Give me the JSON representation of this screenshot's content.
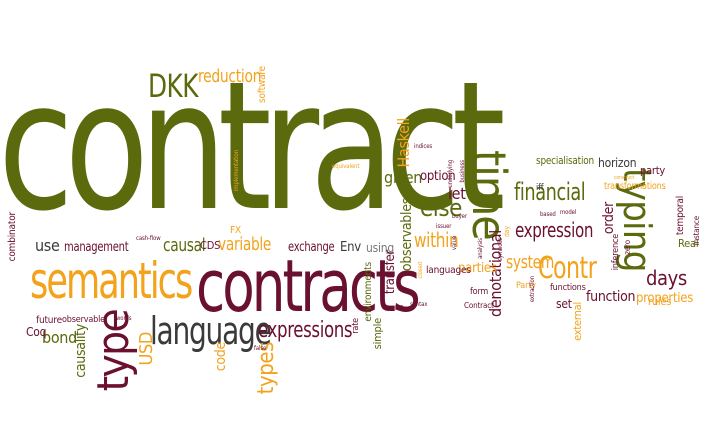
{
  "words": [
    {
      "id": "contract",
      "text": "contract",
      "color": "#5a6a0c"
    },
    {
      "id": "contracts",
      "text": "contracts",
      "color": "#6a1030"
    },
    {
      "id": "semantics",
      "text": "semantics",
      "color": "#f3a21c"
    },
    {
      "id": "type",
      "text": "type",
      "color": "#6a1030"
    },
    {
      "id": "language",
      "text": "language",
      "color": "#3a3a3a"
    },
    {
      "id": "time",
      "text": "time",
      "color": "#5a6a0c"
    },
    {
      "id": "typing",
      "text": "typing",
      "color": "#5a6a0c"
    },
    {
      "id": "Contr",
      "text": "Contr",
      "color": "#f3a21c"
    },
    {
      "id": "financial",
      "text": "financial",
      "color": "#5a6a0c"
    },
    {
      "id": "expression",
      "text": "expression",
      "color": "#6a1030"
    },
    {
      "id": "expressions",
      "text": "expressions",
      "color": "#6a1030"
    },
    {
      "id": "days",
      "text": "days",
      "color": "#6a1030"
    },
    {
      "id": "DKK",
      "text": "DKK",
      "color": "#5a6a0c"
    },
    {
      "id": "reduction",
      "text": "reduction",
      "color": "#f3a21c"
    },
    {
      "id": "use",
      "text": "use",
      "color": "#3a3a3a"
    },
    {
      "id": "management",
      "text": "management",
      "color": "#6a1030"
    },
    {
      "id": "causal",
      "text": "causal",
      "color": "#5a6a0c"
    },
    {
      "id": "variable",
      "text": "variable",
      "color": "#f3a21c"
    },
    {
      "id": "CDS",
      "text": "CDS",
      "color": "#6a1030"
    },
    {
      "id": "exchange",
      "text": "exchange",
      "color": "#6a1030"
    },
    {
      "id": "Env",
      "text": "Env",
      "color": "#3a3a3a"
    },
    {
      "id": "using",
      "text": "using",
      "color": "#7a7a7a"
    },
    {
      "id": "observables",
      "text": "observables",
      "color": "#5a6a0c"
    },
    {
      "id": "else",
      "text": "else",
      "color": "#5a6a0c"
    },
    {
      "id": "within",
      "text": "within",
      "color": "#f3a21c"
    },
    {
      "id": "let",
      "text": "let",
      "color": "#6a1030"
    },
    {
      "id": "given",
      "text": "given",
      "color": "#5a6a0c"
    },
    {
      "id": "option",
      "text": "option",
      "color": "#6a1030"
    },
    {
      "id": "Haskell",
      "text": "Haskell",
      "color": "#f3a21c"
    },
    {
      "id": "system",
      "text": "system",
      "color": "#f3a21c"
    },
    {
      "id": "denotational",
      "text": "denotational",
      "color": "#6a1030"
    },
    {
      "id": "parties",
      "text": "parties",
      "color": "#f3a21c"
    },
    {
      "id": "function",
      "text": "function",
      "color": "#6a1030"
    },
    {
      "id": "properties",
      "text": "properties",
      "color": "#f3a21c"
    },
    {
      "id": "set",
      "text": "set",
      "color": "#6a1030"
    },
    {
      "id": "specialisation",
      "text": "specialisation",
      "color": "#5a6a0c"
    },
    {
      "id": "horizon",
      "text": "horizon",
      "color": "#3a3a3a"
    },
    {
      "id": "party",
      "text": "party",
      "color": "#6a1030"
    },
    {
      "id": "transformations",
      "text": "transformations",
      "color": "#f3a21c"
    },
    {
      "id": "order",
      "text": "order",
      "color": "#6a1030"
    },
    {
      "id": "Real",
      "text": "Real",
      "color": "#5a6a0c"
    },
    {
      "id": "rules",
      "text": "rules",
      "color": "#f3a21c"
    },
    {
      "id": "bond",
      "text": "bond",
      "color": "#5a6a0c"
    },
    {
      "id": "Coq",
      "text": "Coq",
      "color": "#6a1030"
    },
    {
      "id": "causality",
      "text": "causality",
      "color": "#5a6a0c"
    },
    {
      "id": "USD",
      "text": "USD",
      "color": "#f3a21c"
    },
    {
      "id": "code",
      "text": "code",
      "color": "#f3a21c"
    },
    {
      "id": "types",
      "text": "types",
      "color": "#f3a21c"
    },
    {
      "id": "software",
      "text": "software",
      "color": "#f3a21c"
    },
    {
      "id": "combinator",
      "text": "combinator",
      "color": "#6a1030"
    },
    {
      "id": "future",
      "text": "future",
      "color": "#6a1030"
    },
    {
      "id": "observable",
      "text": "observable",
      "color": "#6a1030"
    },
    {
      "id": "FX",
      "text": "FX",
      "color": "#f3a21c"
    },
    {
      "id": "transfer",
      "text": "transfer",
      "color": "#6a1030"
    },
    {
      "id": "environments",
      "text": "environments",
      "color": "#5a6a0c"
    },
    {
      "id": "simple",
      "text": "simple",
      "color": "#5a6a0c"
    },
    {
      "id": "rate",
      "text": "rate",
      "color": "#6a1030"
    },
    {
      "id": "languages",
      "text": "languages",
      "color": "#6a1030"
    },
    {
      "id": "external",
      "text": "external",
      "color": "#f3a21c"
    },
    {
      "id": "temporal",
      "text": "temporal",
      "color": "#6a1030"
    },
    {
      "id": "instance",
      "text": "instance",
      "color": "#6a1030"
    },
    {
      "id": "iff",
      "text": "iff",
      "color": "#3a3a3a"
    },
    {
      "id": "form",
      "text": "form",
      "color": "#6a1030"
    },
    {
      "id": "Party",
      "text": "Party",
      "color": "#f3a21c"
    },
    {
      "id": "Contract",
      "text": "Contract",
      "color": "#6a1030"
    },
    {
      "id": "functions",
      "text": "functions",
      "color": "#6a1030"
    },
    {
      "id": "inference",
      "text": "inference",
      "color": "#6a1030"
    },
    {
      "id": "zero",
      "text": "zero",
      "color": "#6a1030"
    },
    {
      "id": "cashflow",
      "text": "cash-flow",
      "color": "#6a1030"
    },
    {
      "id": "words",
      "text": "words",
      "color": "#6a1030"
    },
    {
      "id": "false",
      "text": "false",
      "color": "#6a1030"
    },
    {
      "id": "equivalent",
      "text": "equivalent",
      "color": "#f3a21c"
    },
    {
      "id": "implementation",
      "text": "implementation",
      "color": "#f3a21c"
    },
    {
      "id": "indices",
      "text": "indices",
      "color": "#6a1030"
    },
    {
      "id": "business",
      "text": "business",
      "color": "#6a1030"
    },
    {
      "id": "underlying",
      "text": "underlying",
      "color": "#6a1030"
    },
    {
      "id": "issuer",
      "text": "issuer",
      "color": "#6a1030"
    },
    {
      "id": "buyer",
      "text": "buyer",
      "color": "#6a1030"
    },
    {
      "id": "value",
      "text": "value",
      "color": "#6a1030"
    },
    {
      "id": "closed",
      "text": "closed",
      "color": "#f3a21c"
    },
    {
      "id": "analysis",
      "text": "analysis",
      "color": "#6a1030"
    },
    {
      "id": "symbolic",
      "text": "symbolic",
      "color": "#6a1030"
    },
    {
      "id": "day",
      "text": "day",
      "color": "#f3a21c"
    },
    {
      "id": "based",
      "text": "based",
      "color": "#6a1030"
    },
    {
      "id": "model",
      "text": "model",
      "color": "#6a1030"
    },
    {
      "id": "construct",
      "text": "construct",
      "color": "#f3a21c"
    },
    {
      "id": "extraction",
      "text": "extraction",
      "color": "#6a1030"
    },
    {
      "id": "syntax",
      "text": "syntax",
      "color": "#6a1030"
    },
    {
      "id": "cashflows",
      "text": "cash-flows",
      "color": "#6a1030"
    }
  ]
}
